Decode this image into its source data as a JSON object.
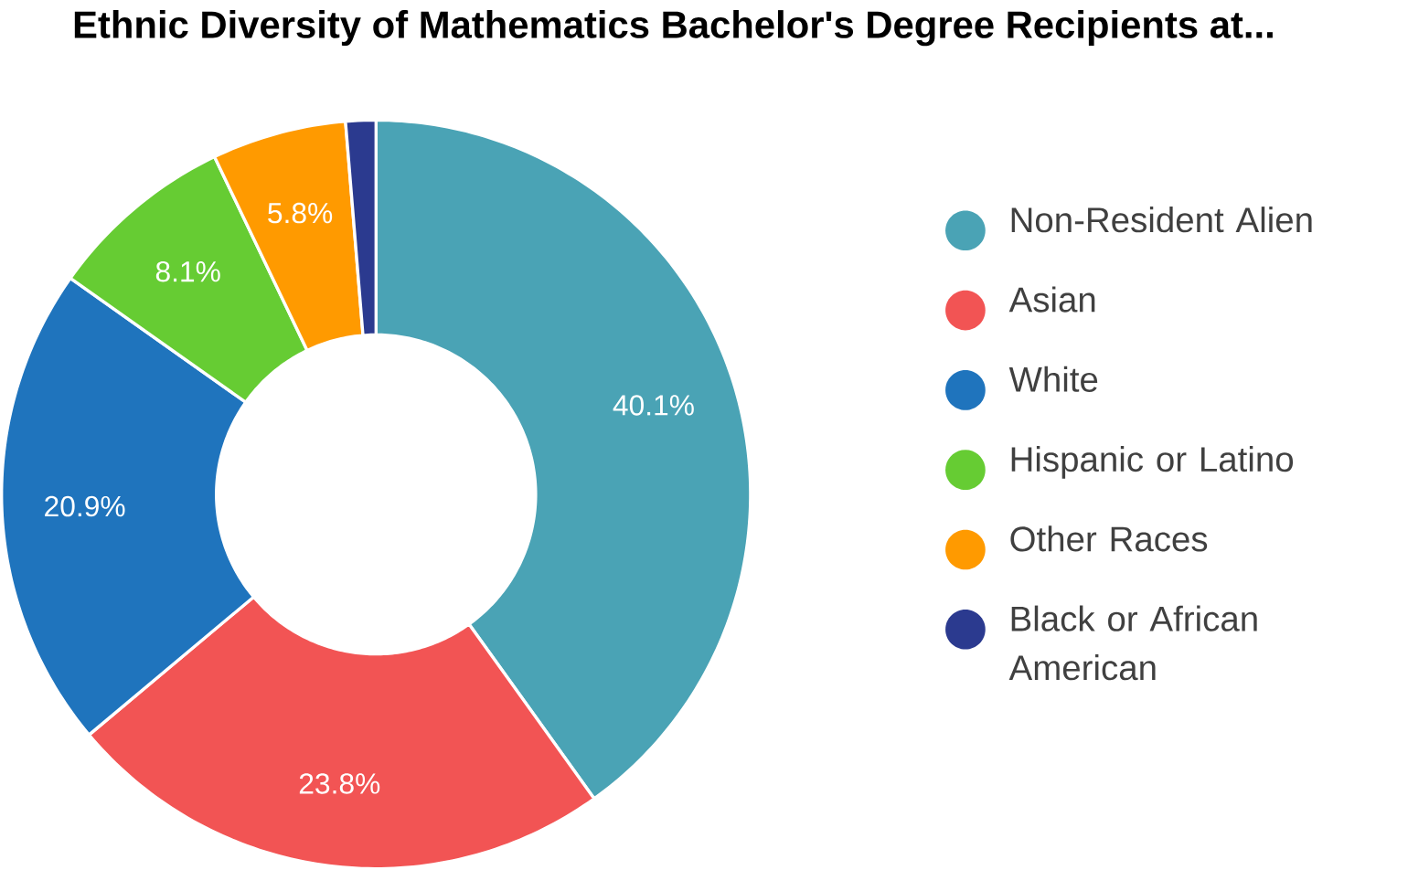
{
  "chart_data": {
    "type": "donut",
    "title": "Ethnic Diversity of Mathematics Bachelor's Degree Recipients at...",
    "categories": [
      "Non-Resident Alien",
      "Asian",
      "White",
      "Hispanic or Latino",
      "Other Races",
      "Black or African American"
    ],
    "values": [
      40.1,
      23.8,
      20.9,
      8.1,
      5.8,
      1.3
    ],
    "value_labels": [
      "40.1%",
      "23.8%",
      "20.9%",
      "8.1%",
      "5.8%",
      null
    ],
    "colors": [
      "#4aa3b5",
      "#f25454",
      "#1f74bd",
      "#66cc33",
      "#ff9a00",
      "#2b3a8f"
    ],
    "legend": "right"
  }
}
